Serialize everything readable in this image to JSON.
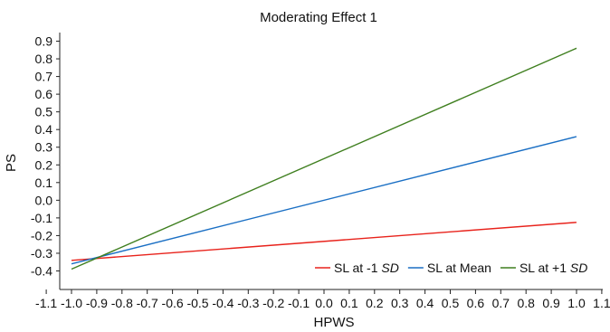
{
  "chart_data": {
    "type": "line",
    "title": "Moderating Effect 1",
    "xlabel": "HPWS",
    "ylabel": "PS",
    "xlim": [
      -1.1,
      1.1
    ],
    "ylim": [
      -0.5,
      0.95
    ],
    "x_ticks": [
      "-1.1",
      "-1.0",
      "-0.9",
      "-0.8",
      "-0.7",
      "-0.6",
      "-0.5",
      "-0.4",
      "-0.3",
      "-0.2",
      "-0.1",
      "0.0",
      "0.1",
      "0.2",
      "0.3",
      "0.4",
      "0.5",
      "0.6",
      "0.7",
      "0.8",
      "0.9",
      "1.0",
      "1.1"
    ],
    "y_ticks": [
      "0.9",
      "0.8",
      "0.7",
      "0.6",
      "0.5",
      "0.4",
      "0.3",
      "0.2",
      "0.1",
      "0.0",
      "-0.1",
      "-0.2",
      "-0.3",
      "-0.4"
    ],
    "grid": false,
    "legend_position": "bottom-right",
    "series": [
      {
        "name_main": "SL at -1 ",
        "name_italic": "SD",
        "color": "#e8221b",
        "x": [
          -1.0,
          1.0
        ],
        "y": [
          -0.34,
          -0.125
        ]
      },
      {
        "name_main": "SL at Mean",
        "name_italic": "",
        "color": "#1a6fc4",
        "x": [
          -1.0,
          1.0
        ],
        "y": [
          -0.36,
          0.36
        ]
      },
      {
        "name_main": "SL at +1 ",
        "name_italic": "SD",
        "color": "#3f7f1f",
        "x": [
          -1.0,
          1.0
        ],
        "y": [
          -0.39,
          0.86
        ]
      }
    ]
  }
}
